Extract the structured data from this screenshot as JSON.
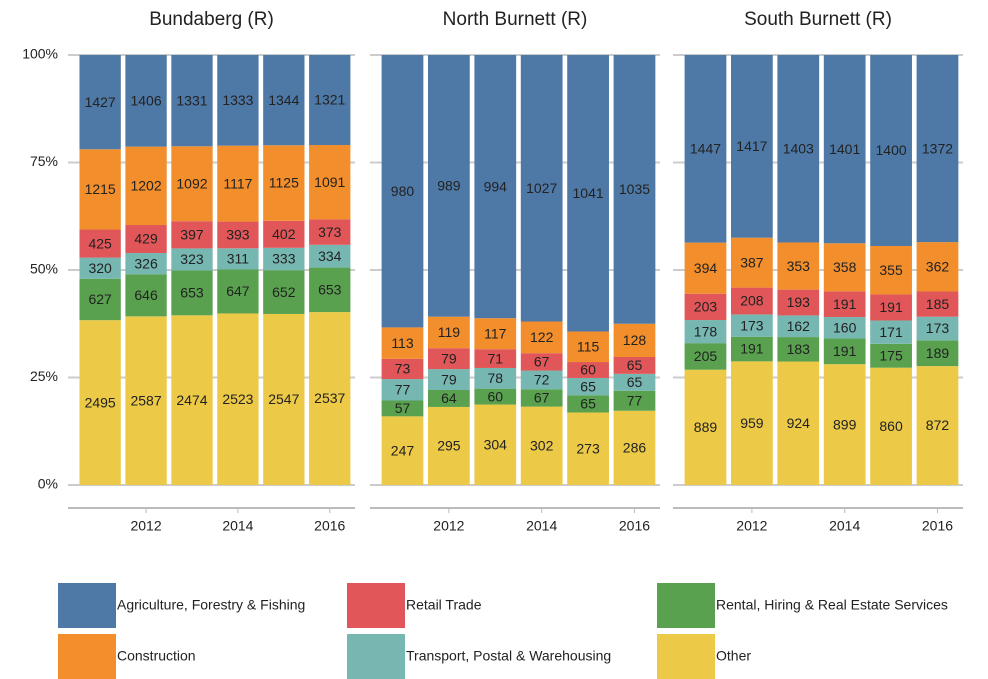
{
  "chart_data": [
    {
      "type": "bar",
      "stacked": "percent",
      "title": "Bundaberg (R)",
      "x": [
        2011,
        2012,
        2013,
        2014,
        2015,
        2016
      ],
      "xlim": [
        2010.3,
        2016.55
      ],
      "xticks": [
        2012,
        2014,
        2016
      ],
      "ylim": [
        0,
        100
      ],
      "yticks": [
        {
          "value": 0,
          "label": "0%"
        },
        {
          "value": 25,
          "label": "25%"
        },
        {
          "value": 50,
          "label": "50%"
        },
        {
          "value": 75,
          "label": "75%"
        },
        {
          "value": 100,
          "label": "100%"
        }
      ],
      "grid": true,
      "series": [
        {
          "name": "Other",
          "color": "#edc948",
          "values": [
            2495,
            2587,
            2474,
            2523,
            2547,
            2537
          ]
        },
        {
          "name": "Rental, Hiring & Real Estate Services",
          "color": "#59a14f",
          "values": [
            627,
            646,
            653,
            647,
            652,
            653
          ]
        },
        {
          "name": "Transport, Postal & Warehousing",
          "color": "#76b7b2",
          "values": [
            320,
            326,
            323,
            311,
            333,
            334
          ]
        },
        {
          "name": "Retail Trade",
          "color": "#e15759",
          "values": [
            425,
            429,
            397,
            393,
            402,
            373
          ]
        },
        {
          "name": "Construction",
          "color": "#f28e2b",
          "values": [
            1215,
            1202,
            1092,
            1117,
            1125,
            1091
          ]
        },
        {
          "name": "Agriculture, Forestry & Fishing",
          "color": "#4e79a7",
          "values": [
            1427,
            1406,
            1331,
            1333,
            1344,
            1321
          ]
        }
      ]
    },
    {
      "type": "bar",
      "stacked": "percent",
      "title": "North Burnett (R)",
      "x": [
        2011,
        2012,
        2013,
        2014,
        2015,
        2016
      ],
      "xlim": [
        2010.3,
        2016.55
      ],
      "xticks": [
        2012,
        2014,
        2016
      ],
      "ylim": [
        0,
        100
      ],
      "yticks": [
        0,
        25,
        50,
        75,
        100
      ],
      "grid": true,
      "series": [
        {
          "name": "Other",
          "color": "#edc948",
          "values": [
            247,
            295,
            304,
            302,
            273,
            286
          ]
        },
        {
          "name": "Rental, Hiring & Real Estate Services",
          "color": "#59a14f",
          "values": [
            57,
            64,
            60,
            67,
            65,
            77
          ]
        },
        {
          "name": "Transport, Postal & Warehousing",
          "color": "#76b7b2",
          "values": [
            77,
            79,
            78,
            72,
            65,
            65
          ]
        },
        {
          "name": "Retail Trade",
          "color": "#e15759",
          "values": [
            73,
            79,
            71,
            67,
            60,
            65
          ]
        },
        {
          "name": "Construction",
          "color": "#f28e2b",
          "values": [
            113,
            119,
            117,
            122,
            115,
            128
          ]
        },
        {
          "name": "Agriculture, Forestry & Fishing",
          "color": "#4e79a7",
          "values": [
            980,
            989,
            994,
            1027,
            1041,
            1035
          ]
        }
      ]
    },
    {
      "type": "bar",
      "stacked": "percent",
      "title": "South Burnett (R)",
      "x": [
        2011,
        2012,
        2013,
        2014,
        2015,
        2016
      ],
      "xlim": [
        2010.3,
        2016.55
      ],
      "xticks": [
        2012,
        2014,
        2016
      ],
      "ylim": [
        0,
        100
      ],
      "yticks": [
        0,
        25,
        50,
        75,
        100
      ],
      "grid": true,
      "series": [
        {
          "name": "Other",
          "color": "#edc948",
          "values": [
            889,
            959,
            924,
            899,
            860,
            872
          ]
        },
        {
          "name": "Rental, Hiring & Real Estate Services",
          "color": "#59a14f",
          "values": [
            205,
            191,
            183,
            191,
            175,
            189
          ]
        },
        {
          "name": "Transport, Postal & Warehousing",
          "color": "#76b7b2",
          "values": [
            178,
            173,
            162,
            160,
            171,
            173
          ]
        },
        {
          "name": "Retail Trade",
          "color": "#e15759",
          "values": [
            203,
            208,
            193,
            191,
            191,
            185
          ]
        },
        {
          "name": "Construction",
          "color": "#f28e2b",
          "values": [
            394,
            387,
            353,
            358,
            355,
            362
          ]
        },
        {
          "name": "Agriculture, Forestry & Fishing",
          "color": "#4e79a7",
          "values": [
            1447,
            1417,
            1403,
            1401,
            1400,
            1372
          ]
        }
      ]
    }
  ]
}
